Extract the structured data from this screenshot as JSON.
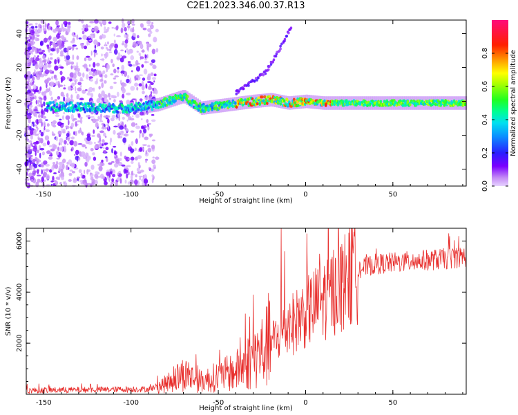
{
  "title": "C2E1.2023.346.00.37.R13",
  "chart_data": [
    {
      "type": "heatmap",
      "xlabel": "Height of straight line (km)",
      "ylabel": "Frequency (Hz)",
      "xlim": [
        -160,
        92
      ],
      "ylim": [
        -50,
        48
      ],
      "xticks": [
        -150,
        -100,
        -50,
        0,
        50
      ],
      "yticks": [
        -40,
        -20,
        0,
        20,
        40
      ],
      "colorbar": {
        "label": "Normalized spectral amplitude",
        "range": [
          0,
          1
        ],
        "ticks": [
          0.0,
          0.2,
          0.4,
          0.6,
          0.8
        ]
      },
      "ridge": {
        "description_points": [
          {
            "x": -140,
            "y": -3
          },
          {
            "x": -120,
            "y": -4
          },
          {
            "x": -100,
            "y": -4
          },
          {
            "x": -85,
            "y": -2
          },
          {
            "x": -70,
            "y": 3
          },
          {
            "x": -60,
            "y": -4
          },
          {
            "x": -45,
            "y": -2
          },
          {
            "x": -30,
            "y": 0
          },
          {
            "x": -20,
            "y": 1
          },
          {
            "x": -10,
            "y": -1
          },
          {
            "x": 0,
            "y": 0
          },
          {
            "x": 10,
            "y": -1
          },
          {
            "x": 20,
            "y": -1
          },
          {
            "x": 40,
            "y": -1
          },
          {
            "x": 60,
            "y": -1
          },
          {
            "x": 90,
            "y": -1
          }
        ],
        "upper_branch": [
          {
            "x": -40,
            "y": 5
          },
          {
            "x": -30,
            "y": 12
          },
          {
            "x": -22,
            "y": 18
          },
          {
            "x": -18,
            "y": 25
          },
          {
            "x": -12,
            "y": 36
          },
          {
            "x": -8,
            "y": 44
          }
        ]
      }
    },
    {
      "type": "line",
      "xlabel": "Height of straight line (km)",
      "ylabel": "SNR (10 * v/v)",
      "xlim": [
        -160,
        92
      ],
      "ylim": [
        0,
        6500
      ],
      "xticks": [
        -150,
        -100,
        -50,
        0,
        50
      ],
      "yticks": [
        2000,
        4000,
        6000
      ],
      "color": "#e8302e",
      "envelope": [
        {
          "x": -160,
          "y": 150
        },
        {
          "x": -120,
          "y": 180
        },
        {
          "x": -90,
          "y": 200
        },
        {
          "x": -80,
          "y": 400
        },
        {
          "x": -70,
          "y": 800
        },
        {
          "x": -60,
          "y": 500
        },
        {
          "x": -50,
          "y": 700
        },
        {
          "x": -40,
          "y": 900
        },
        {
          "x": -30,
          "y": 1400
        },
        {
          "x": -20,
          "y": 2000
        },
        {
          "x": -10,
          "y": 2600
        },
        {
          "x": 0,
          "y": 3200
        },
        {
          "x": 10,
          "y": 3700
        },
        {
          "x": 20,
          "y": 4300
        },
        {
          "x": 30,
          "y": 4900
        },
        {
          "x": 40,
          "y": 5100
        },
        {
          "x": 60,
          "y": 5200
        },
        {
          "x": 80,
          "y": 5300
        },
        {
          "x": 92,
          "y": 5400
        }
      ],
      "peaks": [
        {
          "x": -14,
          "y": 6500
        },
        {
          "x": -30,
          "y": 3900
        },
        {
          "x": -12,
          "y": 5600
        },
        {
          "x": 8,
          "y": 5500
        },
        {
          "x": 82,
          "y": 6300
        }
      ]
    }
  ]
}
